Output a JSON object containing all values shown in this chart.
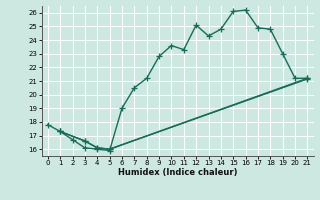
{
  "xlabel": "Humidex (Indice chaleur)",
  "bg_color": "#cce8e0",
  "grid_color": "#ffffff",
  "line_color": "#1a6b5a",
  "xlim": [
    -0.5,
    21.5
  ],
  "ylim": [
    15.5,
    26.5
  ],
  "xticks": [
    0,
    1,
    2,
    3,
    4,
    5,
    6,
    7,
    8,
    9,
    10,
    11,
    12,
    13,
    14,
    15,
    16,
    17,
    18,
    19,
    20,
    21
  ],
  "yticks": [
    16,
    17,
    18,
    19,
    20,
    21,
    22,
    23,
    24,
    25,
    26
  ],
  "line1_x": [
    0,
    1,
    2,
    3,
    4,
    5,
    6,
    7,
    8,
    9,
    10,
    11,
    12,
    13,
    14,
    15,
    16,
    17,
    18,
    19,
    20,
    21
  ],
  "line1_y": [
    17.8,
    17.3,
    16.7,
    16.1,
    16.0,
    15.9,
    19.0,
    20.5,
    21.2,
    22.8,
    23.6,
    23.3,
    25.1,
    24.3,
    24.8,
    26.1,
    26.2,
    24.9,
    24.8,
    23.0,
    21.2,
    21.2
  ],
  "line2_x": [
    1,
    3,
    4,
    5,
    21
  ],
  "line2_y": [
    17.3,
    16.6,
    16.1,
    16.0,
    21.2
  ],
  "line3_x": [
    1,
    3,
    4,
    5,
    21
  ],
  "line3_y": [
    17.3,
    16.6,
    16.1,
    16.0,
    21.15
  ],
  "marker_size": 4,
  "line_width": 1.0
}
